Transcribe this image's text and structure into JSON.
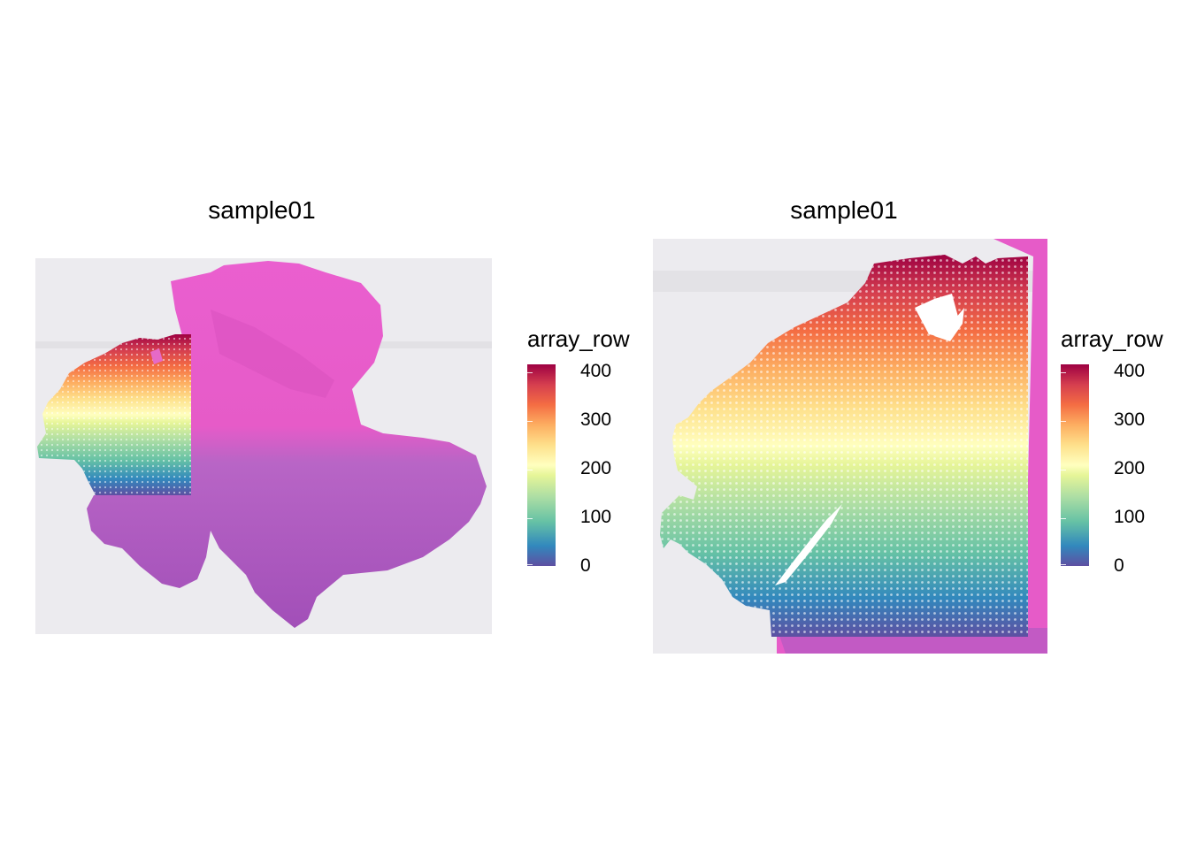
{
  "chart_data": [
    {
      "type": "scatter",
      "title": "sample01",
      "color_variable": "array_row",
      "legend": {
        "title": "array_row",
        "ticks": [
          "0",
          "100",
          "200",
          "300",
          "400"
        ],
        "tick_values": [
          0,
          100,
          200,
          300,
          400
        ],
        "range": [
          0,
          420
        ],
        "placement": "right"
      },
      "palette": [
        "#5e4fa2",
        "#3288bd",
        "#66c2a5",
        "#abdda4",
        "#e6f598",
        "#ffffbf",
        "#fee08b",
        "#fdae61",
        "#f46d43",
        "#d53e4f",
        "#9e0142"
      ],
      "background": "tissue-image"
    },
    {
      "type": "scatter",
      "title": "sample01",
      "color_variable": "array_row",
      "legend": {
        "title": "array_row",
        "ticks": [
          "0",
          "100",
          "200",
          "300",
          "400"
        ],
        "tick_values": [
          0,
          100,
          200,
          300,
          400
        ],
        "range": [
          0,
          420
        ],
        "placement": "right"
      },
      "palette": [
        "#5e4fa2",
        "#3288bd",
        "#66c2a5",
        "#abdda4",
        "#e6f598",
        "#ffffbf",
        "#fee08b",
        "#fdae61",
        "#f46d43",
        "#d53e4f",
        "#9e0142"
      ],
      "background": "tissue-image-zoomed"
    }
  ],
  "colors": {
    "slide_bg": "#ecebef",
    "tissue_pink": "#e65bc8",
    "tissue_purple": "#b25ac2",
    "tissue_dark": "#9f4fb5"
  }
}
